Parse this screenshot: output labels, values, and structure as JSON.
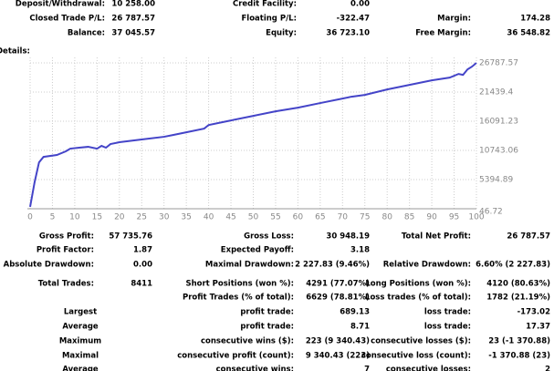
{
  "summary": {
    "rows": [
      [
        "Deposit/Withdrawal:",
        "10 258.00",
        "Credit Facility:",
        "0.00",
        null,
        null
      ],
      [
        "Closed Trade P/L:",
        "26 787.57",
        "Floating P/L:",
        "-322.47",
        "Margin:",
        "174.28"
      ],
      [
        "Balance:",
        "37 045.57",
        "Equity:",
        "36 723.10",
        "Free Margin:",
        "36 548.82"
      ]
    ]
  },
  "details_label": "Details:",
  "chart_data": {
    "type": "line",
    "color": "#4444c8",
    "grid": true,
    "x": [
      0,
      1,
      2,
      3,
      6,
      8,
      9,
      11,
      13,
      15,
      16,
      17,
      18,
      20,
      25,
      30,
      32,
      35,
      39,
      40,
      42,
      45,
      50,
      55,
      60,
      65,
      70,
      72,
      75,
      80,
      85,
      90,
      94,
      96,
      97,
      98,
      99,
      100
    ],
    "values": [
      400,
      4900,
      8560,
      9560,
      9900,
      10570,
      11070,
      11240,
      11400,
      11070,
      11570,
      11240,
      11900,
      12240,
      12740,
      13240,
      13570,
      14070,
      14740,
      15400,
      15740,
      16240,
      17080,
      17910,
      18580,
      19420,
      20250,
      20590,
      20920,
      21920,
      22760,
      23590,
      24090,
      24760,
      24590,
      25600,
      26100,
      26787.57
    ],
    "xlim": [
      0,
      100
    ],
    "xticks": [
      0,
      5,
      10,
      15,
      20,
      25,
      30,
      35,
      40,
      45,
      50,
      55,
      60,
      65,
      70,
      75,
      80,
      85,
      90,
      95,
      100
    ],
    "ylim": [
      46.72,
      26787.57
    ],
    "yticks": [
      46.72,
      5394.89,
      10743.06,
      16091.23,
      21439.4,
      26787.57
    ]
  },
  "stats": {
    "rows": [
      [
        "Gross Profit:",
        "57 735.76",
        "Gross Loss:",
        "30 948.19",
        "Total Net Profit:",
        "26 787.57"
      ],
      [
        "Profit Factor:",
        "1.87",
        "Expected Payoff:",
        "3.18",
        null,
        null
      ],
      [
        "Absolute Drawdown:",
        "0.00",
        "Maximal Drawdown:",
        "2 227.83 (9.46%)",
        "Relative Drawdown:",
        "6.60% (2 227.83)"
      ],
      [
        "Total Trades:",
        "8411",
        "Short Positions (won %):",
        "4291 (77.07%)",
        "Long Positions (won %):",
        "4120 (80.63%)"
      ],
      [
        null,
        null,
        "Profit Trades (% of total):",
        "6629 (78.81%)",
        "Loss trades (% of total):",
        "1782 (21.19%)"
      ],
      [
        "Largest",
        null,
        "profit trade:",
        "689.13",
        "loss trade:",
        "-173.02"
      ],
      [
        "Average",
        null,
        "profit trade:",
        "8.71",
        "loss trade:",
        "17.37"
      ],
      [
        "Maximum",
        null,
        "consecutive wins ($):",
        "223 (9 340.43)",
        "consecutive losses ($):",
        "23 (-1 370.88)"
      ],
      [
        "Maximal",
        null,
        "consecutive profit (count):",
        "9 340.43 (223)",
        "consecutive loss (count):",
        "-1 370.88 (23)"
      ],
      [
        "Average",
        null,
        "consecutive wins:",
        "7",
        "consecutive losses:",
        "2"
      ]
    ]
  }
}
